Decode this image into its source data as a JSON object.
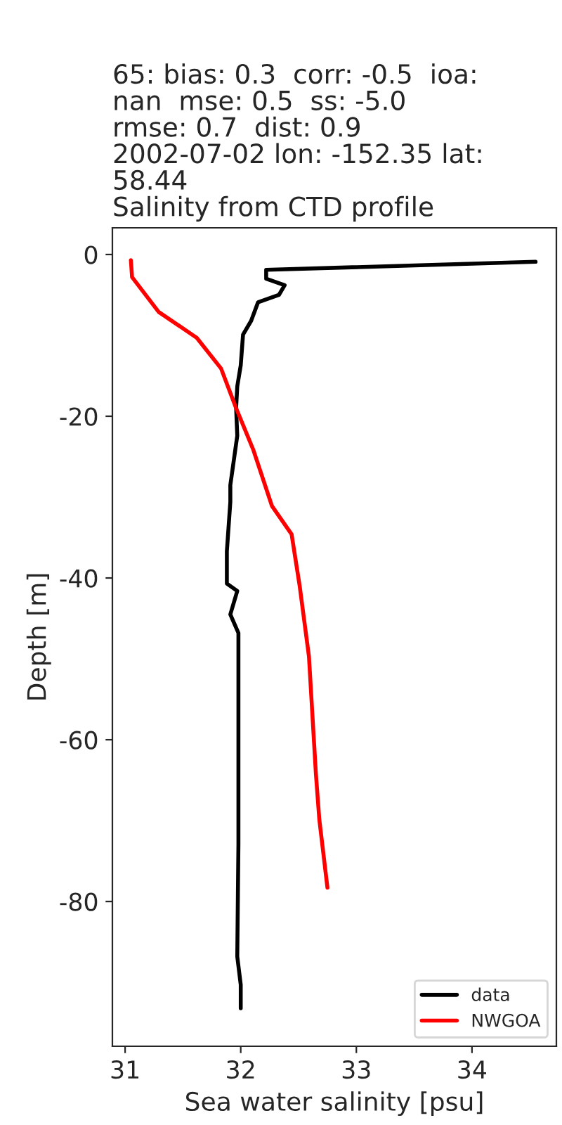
{
  "chart_data": {
    "type": "line",
    "title": "65: bias: 0.3  corr: -0.5  ioa:\nnan  mse: 0.5  ss: -5.0\nrmse: 0.7  dist: 0.9\n2002-07-02 lon: -152.35 lat:\n58.44\nSalinity from CTD profile",
    "xlabel": "Sea water salinity [psu]",
    "ylabel": "Depth [m]",
    "series": [
      {
        "name": "data",
        "color": "#000000",
        "x": [
          34.55,
          32.22,
          32.22,
          32.38,
          32.33,
          32.15,
          32.09,
          32.02,
          32.0,
          31.97,
          31.96,
          31.97,
          31.91,
          31.91,
          31.88,
          31.88,
          31.97,
          31.91,
          31.98,
          31.98,
          31.98,
          31.97,
          32.0,
          32.0
        ],
        "values": [
          -0.9,
          -1.9,
          -3.0,
          -3.8,
          -5.0,
          -5.9,
          -8.2,
          -9.9,
          -13.7,
          -16.3,
          -19.0,
          -22.4,
          -28.5,
          -30.6,
          -36.7,
          -40.7,
          -41.6,
          -44.5,
          -46.8,
          -55.5,
          -72.9,
          -86.8,
          -90.3,
          -93.2
        ]
      },
      {
        "name": "NWGOA",
        "color": "#ff0000",
        "x": [
          31.05,
          31.06,
          31.29,
          31.62,
          31.83,
          31.96,
          32.11,
          32.27,
          32.44,
          32.51,
          32.59,
          32.65,
          32.68,
          32.75
        ],
        "values": [
          -0.7,
          -2.8,
          -7.1,
          -10.3,
          -14.1,
          -19.0,
          -24.2,
          -31.1,
          -34.6,
          -41.0,
          -49.7,
          -64.2,
          -69.9,
          -78.3
        ]
      }
    ],
    "xlim": [
      30.89,
      34.73
    ],
    "xticks": [
      31,
      32,
      33,
      34
    ],
    "ylim": [
      -97.9,
      3.3
    ],
    "yticks": [
      -80,
      -60,
      -40,
      -20,
      0
    ],
    "grid": false,
    "legend": "bottom right",
    "line_style": "solid",
    "marker": "none"
  }
}
